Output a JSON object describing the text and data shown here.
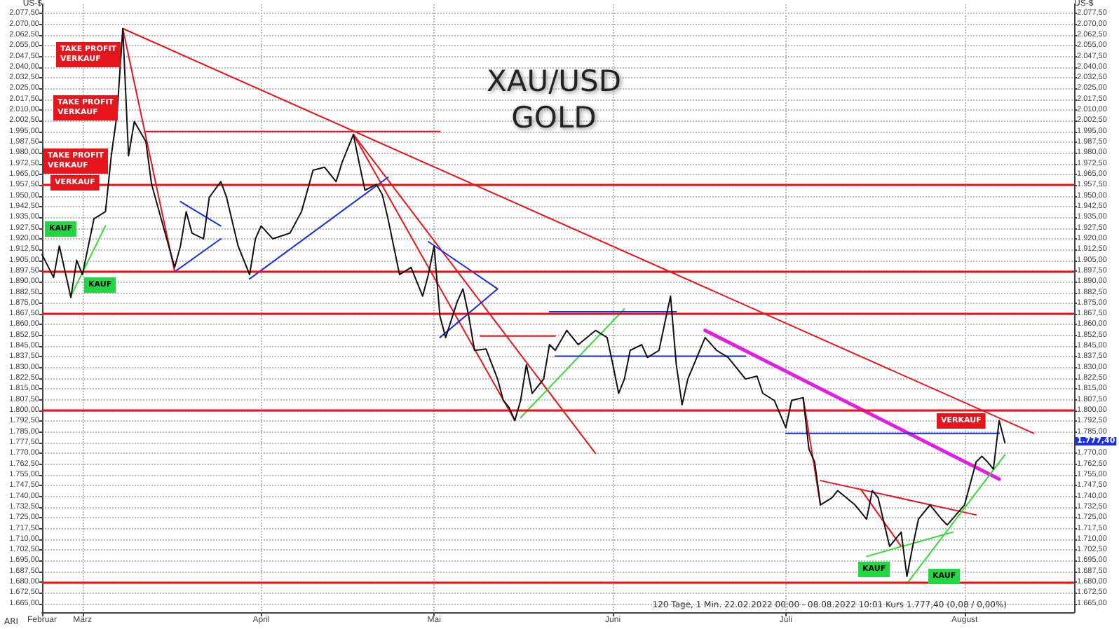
{
  "chart_data": {
    "type": "line",
    "title": "XAU/USD\nGOLD",
    "ylabel": "US-$",
    "y2label": "US-$",
    "marker": "none",
    "grid": true,
    "xlim": [
      "2022-02-22",
      "2022-08-20"
    ],
    "xticks": [
      {
        "value": "2022-02-22",
        "label": "Februar"
      },
      {
        "value": "2022-03-01",
        "label": "März"
      },
      {
        "value": "2022-04-01",
        "label": "April"
      },
      {
        "value": "2022-05-01",
        "label": "Mai"
      },
      {
        "value": "2022-06-01",
        "label": "Juni"
      },
      {
        "value": "2022-07-01",
        "label": "Juli"
      },
      {
        "value": "2022-08-01",
        "label": "August"
      }
    ],
    "ylim": [
      1659,
      2084
    ],
    "yticks": [
      {
        "value": 1665,
        "label": "1.665,00"
      },
      {
        "value": 1672.5,
        "label": "1.672,50"
      },
      {
        "value": 1680,
        "label": "1.680,00"
      },
      {
        "value": 1687.5,
        "label": "1.687,50"
      },
      {
        "value": 1695,
        "label": "1.695,00"
      },
      {
        "value": 1702.5,
        "label": "1.702,50"
      },
      {
        "value": 1710,
        "label": "1.710,00"
      },
      {
        "value": 1717.5,
        "label": "1.717,50"
      },
      {
        "value": 1725,
        "label": "1.725,00"
      },
      {
        "value": 1732.5,
        "label": "1.732,50"
      },
      {
        "value": 1740,
        "label": "1.740,00"
      },
      {
        "value": 1747.5,
        "label": "1.747,50"
      },
      {
        "value": 1755,
        "label": "1.755,00"
      },
      {
        "value": 1762.5,
        "label": "1.762,50"
      },
      {
        "value": 1770,
        "label": "1.770,00"
      },
      {
        "value": 1777.5,
        "label": "1.777,50"
      },
      {
        "value": 1785,
        "label": "1.785,00"
      },
      {
        "value": 1792.5,
        "label": "1.792,50"
      },
      {
        "value": 1800,
        "label": "1.800,00"
      },
      {
        "value": 1807.5,
        "label": "1.807,50"
      },
      {
        "value": 1815,
        "label": "1.815,00"
      },
      {
        "value": 1822.5,
        "label": "1.822,50"
      },
      {
        "value": 1830,
        "label": "1.830,00"
      },
      {
        "value": 1837.5,
        "label": "1.837,50"
      },
      {
        "value": 1845,
        "label": "1.845,00"
      },
      {
        "value": 1852.5,
        "label": "1.852,50"
      },
      {
        "value": 1860,
        "label": "1.860,00"
      },
      {
        "value": 1867.5,
        "label": "1.867,50"
      },
      {
        "value": 1875,
        "label": "1.875,00"
      },
      {
        "value": 1882.5,
        "label": "1.882,50"
      },
      {
        "value": 1890,
        "label": "1.890,00"
      },
      {
        "value": 1897.5,
        "label": "1.897,50"
      },
      {
        "value": 1905,
        "label": "1.905,00"
      },
      {
        "value": 1912.5,
        "label": "1.912,50"
      },
      {
        "value": 1920,
        "label": "1.920,00"
      },
      {
        "value": 1927.5,
        "label": "1.927,50"
      },
      {
        "value": 1935,
        "label": "1.935,00"
      },
      {
        "value": 1942.5,
        "label": "1.942,50"
      },
      {
        "value": 1950,
        "label": "1.950,00"
      },
      {
        "value": 1957.5,
        "label": "1.957,50"
      },
      {
        "value": 1965,
        "label": "1.965,00"
      },
      {
        "value": 1972.5,
        "label": "1.972,50"
      },
      {
        "value": 1980,
        "label": "1.980,00"
      },
      {
        "value": 1987.5,
        "label": "1.987,50"
      },
      {
        "value": 1995,
        "label": "1.995,00"
      },
      {
        "value": 2002.5,
        "label": "2.002,50"
      },
      {
        "value": 2010,
        "label": "2.010,00"
      },
      {
        "value": 2017.5,
        "label": "2.017,50"
      },
      {
        "value": 2025,
        "label": "2.025,00"
      },
      {
        "value": 2032.5,
        "label": "2.032,50"
      },
      {
        "value": 2040,
        "label": "2.040,00"
      },
      {
        "value": 2047.5,
        "label": "2.047,50"
      },
      {
        "value": 2055,
        "label": "2.055,00"
      },
      {
        "value": 2062.5,
        "label": "2.062,50"
      },
      {
        "value": 2070,
        "label": "2.070,00"
      },
      {
        "value": 2077.5,
        "label": "2.077,50"
      }
    ],
    "y2lim": [
      1659,
      2084
    ],
    "y2ticks": [
      {
        "value": 1665,
        "label": "1.665,00"
      },
      {
        "value": 1672.5,
        "label": "1.672,50"
      },
      {
        "value": 1680,
        "label": "1.680,00"
      },
      {
        "value": 1687.5,
        "label": "1.687,50"
      },
      {
        "value": 1695,
        "label": "1.695,00"
      },
      {
        "value": 1702.5,
        "label": "1.702,50"
      },
      {
        "value": 1710,
        "label": "1.710,00"
      },
      {
        "value": 1717.5,
        "label": "1.717,50"
      },
      {
        "value": 1725,
        "label": "1.725,00"
      },
      {
        "value": 1732.5,
        "label": "1.732,50"
      },
      {
        "value": 1740,
        "label": "1.740,00"
      },
      {
        "value": 1747.5,
        "label": "1.747,50"
      },
      {
        "value": 1755,
        "label": "1.755,00"
      },
      {
        "value": 1762.5,
        "label": "1.762,50"
      },
      {
        "value": 1770,
        "label": "1.770,00"
      },
      {
        "value": 1785,
        "label": "1.785,00"
      },
      {
        "value": 1792.5,
        "label": "1.792,50"
      },
      {
        "value": 1800,
        "label": "1.800,00"
      },
      {
        "value": 1807.5,
        "label": "1.807,50"
      },
      {
        "value": 1815,
        "label": "1.815,00"
      },
      {
        "value": 1822.5,
        "label": "1.822,50"
      },
      {
        "value": 1830,
        "label": "1.830,00"
      },
      {
        "value": 1837.5,
        "label": "1.837,50"
      },
      {
        "value": 1845,
        "label": "1.845,00"
      },
      {
        "value": 1852.5,
        "label": "1.852,50"
      },
      {
        "value": 1860,
        "label": "1.860,00"
      },
      {
        "value": 1867.5,
        "label": "1.867,50"
      },
      {
        "value": 1875,
        "label": "1.875,00"
      },
      {
        "value": 1882.5,
        "label": "1.882,50"
      },
      {
        "value": 1890,
        "label": "1.890,00"
      },
      {
        "value": 1897.5,
        "label": "1.897,50"
      },
      {
        "value": 1905,
        "label": "1.905,00"
      },
      {
        "value": 1912.5,
        "label": "1.912,50"
      },
      {
        "value": 1920,
        "label": "1.920,00"
      },
      {
        "value": 1927.5,
        "label": "1.927,50"
      },
      {
        "value": 1935,
        "label": "1.935,00"
      },
      {
        "value": 1942.5,
        "label": "1.942,50"
      },
      {
        "value": 1950,
        "label": "1.950,00"
      },
      {
        "value": 1957.5,
        "label": "1.957,50"
      },
      {
        "value": 1965,
        "label": "1.965,00"
      },
      {
        "value": 1972.5,
        "label": "1.972,50"
      },
      {
        "value": 1980,
        "label": "1.980,00"
      },
      {
        "value": 1987.5,
        "label": "1.987,50"
      },
      {
        "value": 1995,
        "label": "1.995,00"
      },
      {
        "value": 2002.5,
        "label": "2.002,50"
      },
      {
        "value": 2010,
        "label": "2.010,00"
      },
      {
        "value": 2017.5,
        "label": "2.017,50"
      },
      {
        "value": 2025,
        "label": "2.025,00"
      },
      {
        "value": 2032.5,
        "label": "2.032,50"
      },
      {
        "value": 2040,
        "label": "2.040,00"
      },
      {
        "value": 2047.5,
        "label": "2.047,50"
      },
      {
        "value": 2055,
        "label": "2.055,00"
      },
      {
        "value": 2062.5,
        "label": "2.062,50"
      },
      {
        "value": 2070,
        "label": "2.070,00"
      },
      {
        "value": 2077.5,
        "label": "2.077,50"
      }
    ],
    "x": [
      "2022-02-22",
      "2022-02-24",
      "2022-02-25",
      "2022-02-27",
      "2022-02-28",
      "2022-03-01",
      "2022-03-03",
      "2022-03-05",
      "2022-03-06",
      "2022-03-07",
      "2022-03-08",
      "2022-03-09",
      "2022-03-10",
      "2022-03-12",
      "2022-03-13",
      "2022-03-15",
      "2022-03-17",
      "2022-03-18",
      "2022-03-19",
      "2022-03-20",
      "2022-03-22",
      "2022-03-23",
      "2022-03-25",
      "2022-03-26",
      "2022-03-28",
      "2022-03-30",
      "2022-03-31",
      "2022-04-01",
      "2022-04-03",
      "2022-04-06",
      "2022-04-08",
      "2022-04-10",
      "2022-04-12",
      "2022-04-14",
      "2022-04-15",
      "2022-04-17",
      "2022-04-18",
      "2022-04-19",
      "2022-04-21",
      "2022-04-22",
      "2022-04-23",
      "2022-04-25",
      "2022-04-27",
      "2022-04-29",
      "2022-04-30",
      "2022-05-01",
      "2022-05-02",
      "2022-05-03",
      "2022-05-05",
      "2022-05-06",
      "2022-05-07",
      "2022-05-08",
      "2022-05-10",
      "2022-05-12",
      "2022-05-13",
      "2022-05-14",
      "2022-05-15",
      "2022-05-16",
      "2022-05-17",
      "2022-05-18",
      "2022-05-20",
      "2022-05-21",
      "2022-05-22",
      "2022-05-24",
      "2022-05-26",
      "2022-05-29",
      "2022-05-31",
      "2022-06-01",
      "2022-06-02",
      "2022-06-03",
      "2022-06-04",
      "2022-06-06",
      "2022-06-07",
      "2022-06-09",
      "2022-06-11",
      "2022-06-12",
      "2022-06-13",
      "2022-06-14",
      "2022-06-17",
      "2022-06-19",
      "2022-06-21",
      "2022-06-24",
      "2022-06-26",
      "2022-06-27",
      "2022-06-29",
      "2022-07-01",
      "2022-07-02",
      "2022-07-04",
      "2022-07-05",
      "2022-07-06",
      "2022-07-07",
      "2022-07-09",
      "2022-07-10",
      "2022-07-13",
      "2022-07-15",
      "2022-07-16",
      "2022-07-17",
      "2022-07-19",
      "2022-07-20",
      "2022-07-21",
      "2022-07-22",
      "2022-07-23",
      "2022-07-24",
      "2022-07-26",
      "2022-07-28",
      "2022-07-29",
      "2022-08-01",
      "2022-08-03",
      "2022-08-04",
      "2022-08-05",
      "2022-08-06",
      "2022-08-07",
      "2022-08-08"
    ],
    "series": [
      {
        "color": "#111111",
        "values": [
          1909,
          1893,
          1915,
          1879,
          1905,
          1895,
          1934,
          1939,
          1978,
          2007,
          2067,
          1978,
          2002,
          1988,
          1958,
          1929,
          1900,
          1915,
          1939,
          1924,
          1920,
          1949,
          1960,
          1949,
          1915,
          1895,
          1920,
          1929,
          1920,
          1924,
          1939,
          1968,
          1970,
          1960,
          1973,
          1993,
          1973,
          1954,
          1958,
          1951,
          1934,
          1895,
          1900,
          1880,
          1895,
          1915,
          1866,
          1851,
          1876,
          1885,
          1866,
          1842,
          1843,
          1822,
          1807,
          1802,
          1793,
          1807,
          1832,
          1812,
          1822,
          1846,
          1842,
          1856,
          1846,
          1856,
          1851,
          1832,
          1812,
          1822,
          1842,
          1846,
          1837,
          1842,
          1880,
          1832,
          1804,
          1822,
          1851,
          1842,
          1837,
          1822,
          1824,
          1812,
          1807,
          1788,
          1807,
          1809,
          1773,
          1764,
          1734,
          1739,
          1744,
          1734,
          1724,
          1744,
          1739,
          1705,
          1710,
          1715,
          1684,
          1705,
          1724,
          1734,
          1724,
          1720,
          1734,
          1764,
          1768,
          1764,
          1759,
          1793,
          1777.4
        ]
      },
      {
        "type": "line",
        "color": "#e8141b",
        "x": [
          "2022-03-08",
          "2022-08-13"
        ],
        "values": [
          2067,
          1784
        ]
      },
      {
        "type": "line",
        "color": "#e8141b",
        "x": [
          "2022-03-08",
          "2022-03-17"
        ],
        "values": [
          2067,
          1897
        ]
      },
      {
        "type": "line",
        "color": "#e8141b",
        "x": [
          "2022-03-12",
          "2022-05-02"
        ],
        "values": [
          1995,
          1995
        ]
      },
      {
        "type": "line",
        "color": "#e8141b",
        "x": [
          "2022-04-17",
          "2022-05-15"
        ],
        "values": [
          1993,
          1793
        ]
      },
      {
        "type": "line",
        "color": "#e8141b",
        "x": [
          "2022-04-17",
          "2022-05-29"
        ],
        "values": [
          1993,
          1770
        ]
      },
      {
        "type": "line",
        "color": "#1a2fe0",
        "x": [
          "2022-03-17",
          "2022-03-25"
        ],
        "values": [
          1897,
          1920
        ]
      },
      {
        "type": "line",
        "color": "#1a2fe0",
        "x": [
          "2022-03-18",
          "2022-03-25"
        ],
        "values": [
          1946,
          1929
        ]
      },
      {
        "type": "line",
        "color": "#1a2fe0",
        "x": [
          "2022-03-30",
          "2022-04-23"
        ],
        "values": [
          1892,
          1963
        ]
      },
      {
        "type": "line",
        "color": "#1a2fe0",
        "x": [
          "2022-04-30",
          "2022-05-12",
          "2022-05-02"
        ],
        "values": [
          1918,
          1885,
          1851
        ]
      },
      {
        "type": "line",
        "color": "#33dd33",
        "x": [
          "2022-05-16",
          "2022-06-03"
        ],
        "values": [
          1795,
          1871
        ]
      },
      {
        "type": "line",
        "color": "#1a2fe0",
        "x": [
          "2022-05-21",
          "2022-06-12"
        ],
        "values": [
          1869,
          1869
        ]
      },
      {
        "type": "line",
        "color": "#1a2fe0",
        "x": [
          "2022-05-22",
          "2022-06-24"
        ],
        "values": [
          1838,
          1838
        ]
      },
      {
        "type": "line",
        "color": "#e8141b",
        "x": [
          "2022-05-09",
          "2022-05-22"
        ],
        "values": [
          1852,
          1852
        ]
      },
      {
        "type": "line",
        "color": "#e020e0",
        "x": [
          "2022-06-17",
          "2022-08-07"
        ],
        "values": [
          1856,
          1752
        ]
      },
      {
        "type": "line",
        "color": "#1a2fe0",
        "x": [
          "2022-07-01",
          "2022-08-07"
        ],
        "values": [
          1784,
          1784
        ]
      },
      {
        "type": "line",
        "color": "#e8141b",
        "x": [
          "2022-07-04",
          "2022-07-07"
        ],
        "values": [
          1809,
          1734
        ]
      },
      {
        "type": "line",
        "color": "#e8141b",
        "x": [
          "2022-07-07",
          "2022-08-03"
        ],
        "values": [
          1751,
          1727
        ]
      },
      {
        "type": "line",
        "color": "#e8141b",
        "x": [
          "2022-07-14",
          "2022-07-21"
        ],
        "values": [
          1745,
          1705
        ]
      },
      {
        "type": "line",
        "color": "#33dd33",
        "x": [
          "2022-07-15",
          "2022-07-30"
        ],
        "values": [
          1698,
          1715
        ]
      },
      {
        "type": "line",
        "color": "#33dd33",
        "x": [
          "2022-07-22",
          "2022-08-08"
        ],
        "values": [
          1679,
          1769
        ]
      },
      {
        "type": "line",
        "color": "#33dd33",
        "x": [
          "2022-02-27",
          "2022-03-05"
        ],
        "values": [
          1880,
          1929
        ]
      }
    ],
    "ref_lines": [
      {
        "axis": "y",
        "value": 1957.5,
        "color": "#e8141b"
      },
      {
        "axis": "y",
        "value": 1897.5,
        "color": "#e8141b"
      },
      {
        "axis": "y",
        "value": 1867.5,
        "color": "#e8141b"
      },
      {
        "axis": "y",
        "value": 1800,
        "color": "#e8141b"
      },
      {
        "axis": "y",
        "value": 1680,
        "color": "#e8141b"
      }
    ],
    "annotations": [
      "TAKE PROFIT\nVERKAUF",
      "TAKE PROFIT\nVERKAUF",
      "TAKE PROFIT\nVERKAUF",
      "VERKAUF",
      "KAUF",
      "KAUF",
      "VERKAUF",
      "KAUF",
      "KAUF",
      "1.777,40",
      "120 Tage, 1 Min. 22.02.2022 00:00 - 08.08.2022 10:01 Kurs 1.777,40 (0,08 / 0,00%)",
      "ARI"
    ]
  }
}
